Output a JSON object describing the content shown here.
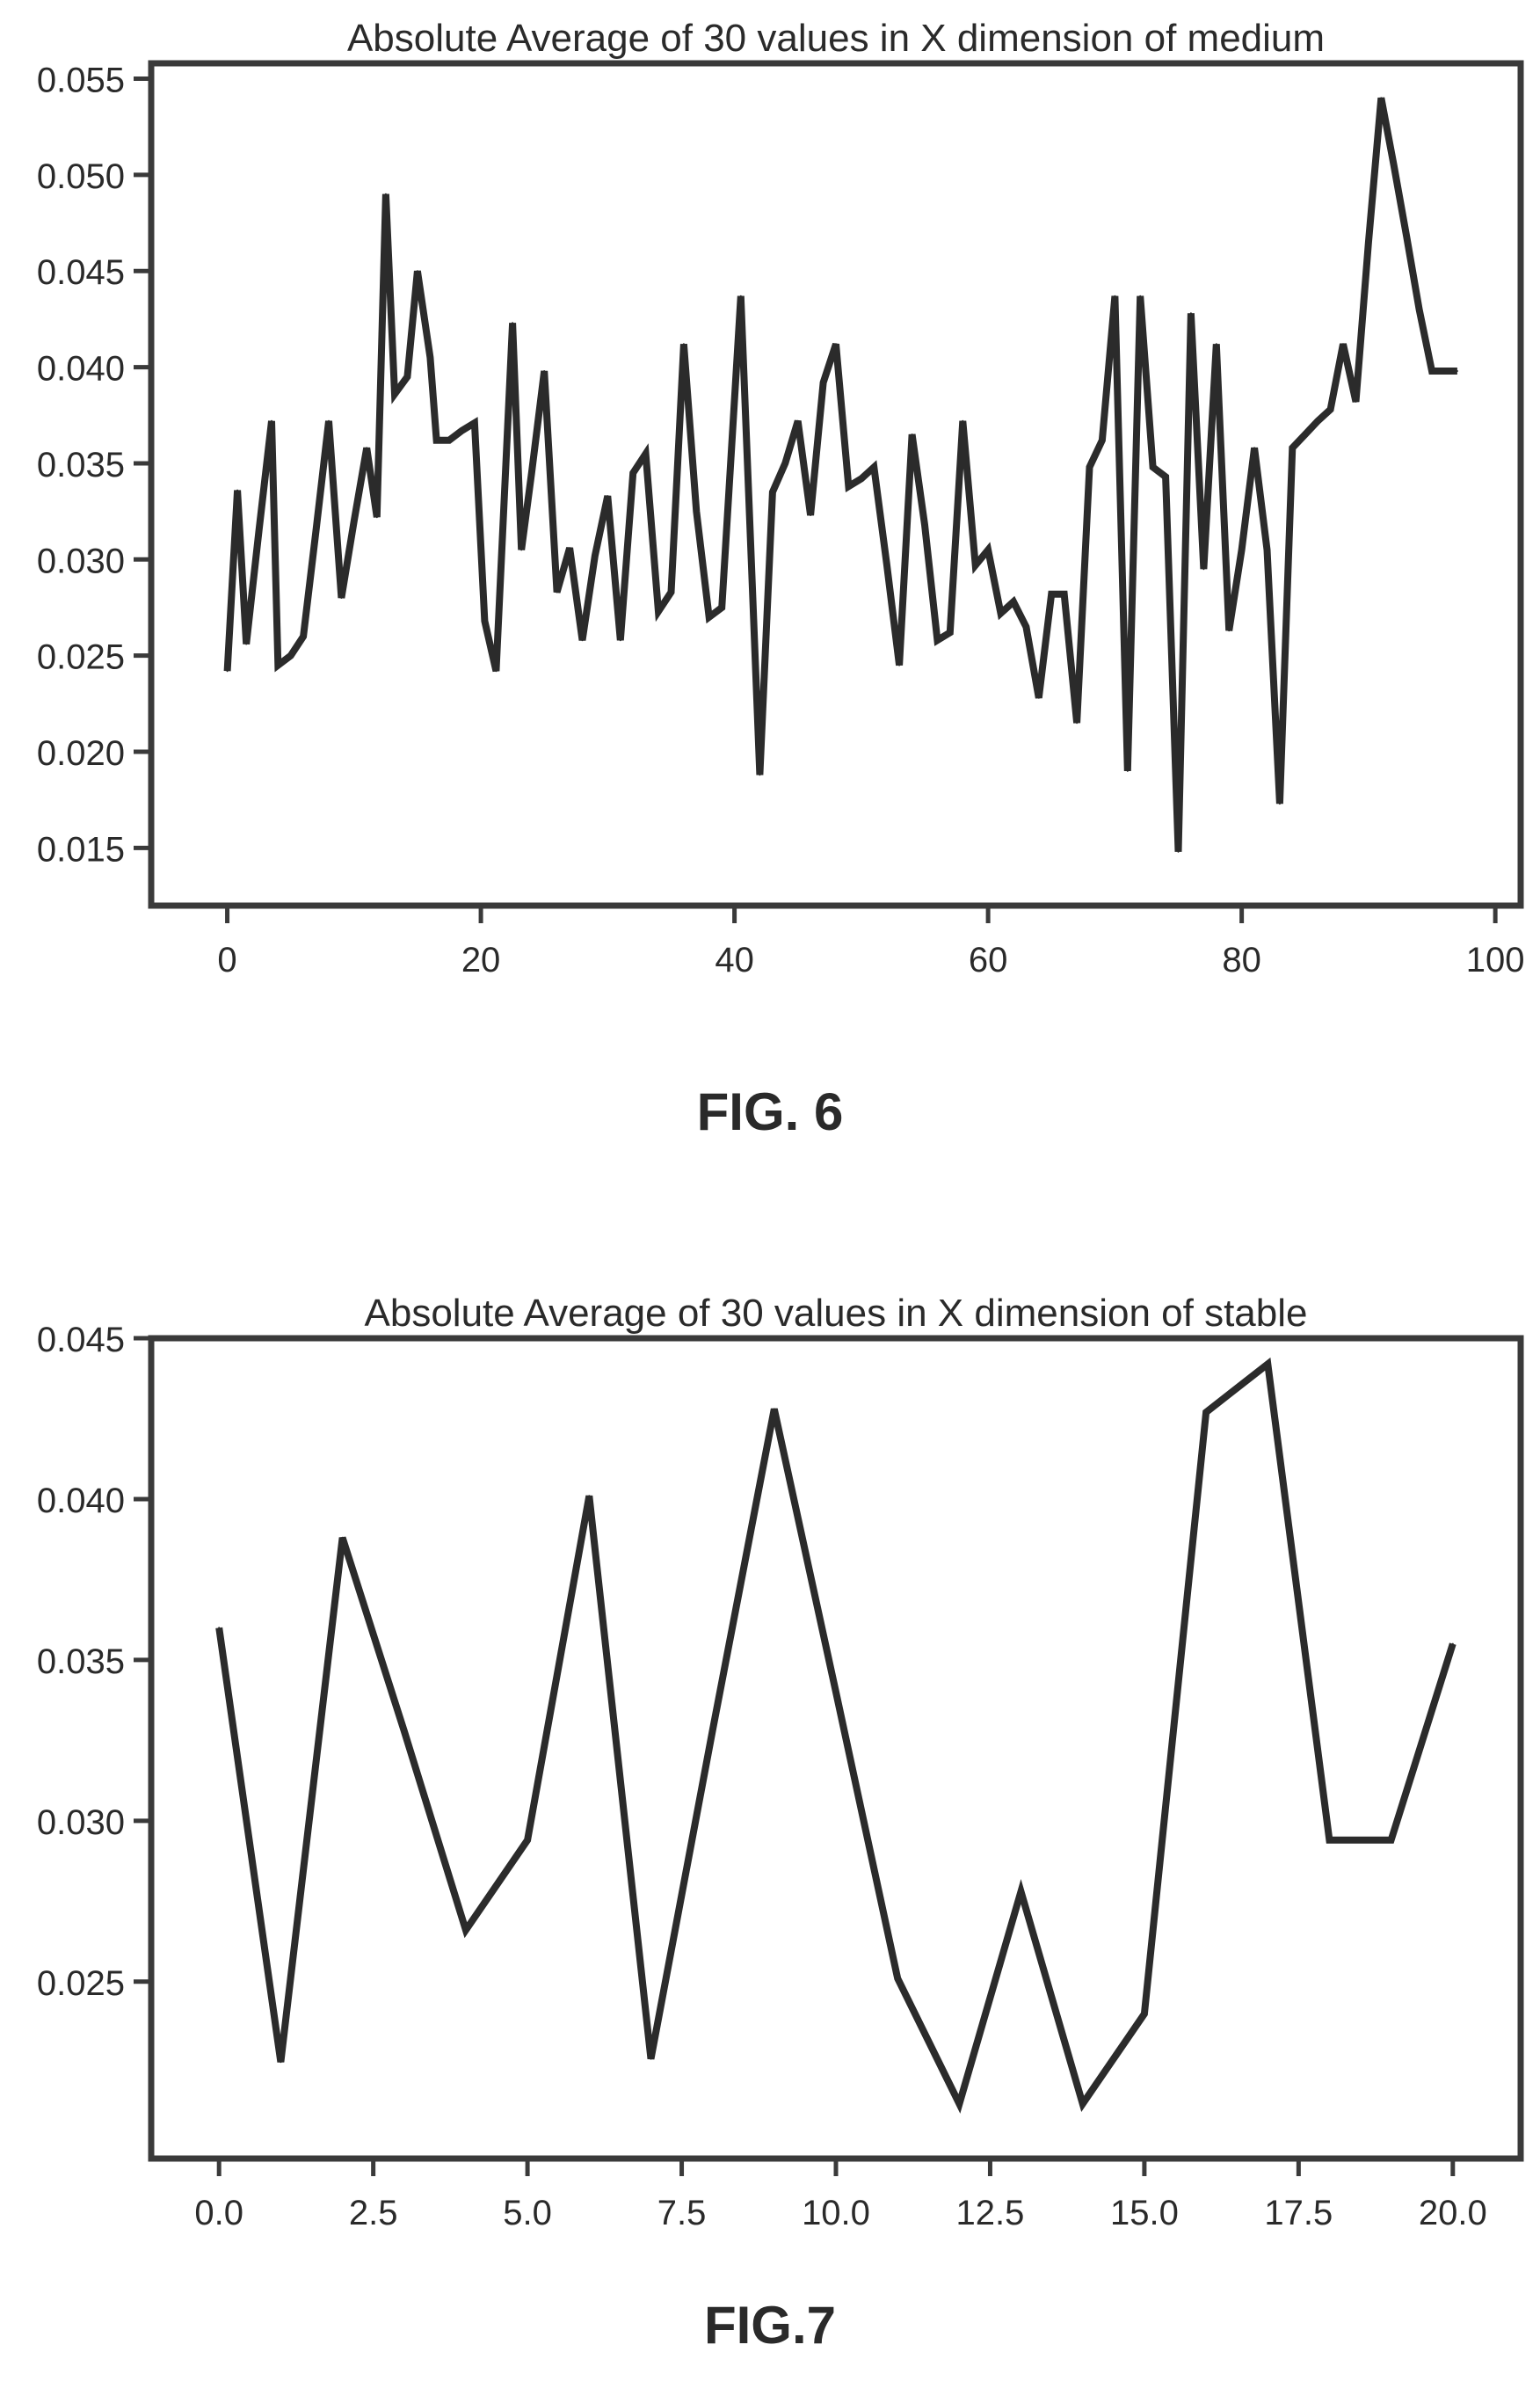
{
  "figures": [
    {
      "caption": "FIG. 6",
      "chart_data": {
        "type": "line",
        "title": "Absolute Average of 30 values in X dimension of medium",
        "xlabel": "",
        "ylabel": "",
        "xlim": [
          -6,
          102
        ],
        "ylim": [
          0.012,
          0.0558
        ],
        "xticks": [
          0,
          20,
          40,
          60,
          80,
          100
        ],
        "xtick_labels": [
          "0",
          "20",
          "40",
          "60",
          "80",
          "100"
        ],
        "yticks": [
          0.015,
          0.02,
          0.025,
          0.03,
          0.035,
          0.04,
          0.045,
          0.05,
          0.055
        ],
        "ytick_labels": [
          "0.015",
          "0.020",
          "0.025",
          "0.030",
          "0.035",
          "0.040",
          "0.045",
          "0.050",
          "0.055"
        ],
        "grid": false,
        "legend": "none",
        "line_color": "#2b2b2b",
        "series": [
          {
            "x": [
              0,
              0.8,
              1.5,
              2.5,
              3.5,
              4,
              5,
              6,
              7,
              8,
              9,
              10,
              11,
              11.8,
              12.5,
              13.2,
              14.2,
              15,
              16,
              16.5,
              17.5,
              18.5,
              19.5,
              20.3,
              21.2,
              22.5,
              23.2,
              24,
              25,
              26,
              27,
              28,
              29,
              30,
              31,
              32,
              33,
              34,
              35,
              36,
              37,
              38,
              39,
              40.5,
              42,
              43,
              44,
              45,
              46,
              47,
              48,
              49,
              50,
              51,
              52,
              53,
              54,
              55,
              56,
              57,
              58,
              59,
              60,
              61,
              62,
              63,
              64,
              65,
              66,
              67,
              68,
              69,
              70,
              71,
              72,
              73,
              74,
              75,
              76,
              77,
              78,
              79,
              80,
              81,
              82,
              83,
              84,
              85,
              86,
              87,
              88,
              89,
              90,
              91,
              92,
              93,
              94,
              95,
              96,
              97
            ],
            "y": [
              0.0242,
              0.0336,
              0.0256,
              0.0315,
              0.0372,
              0.0245,
              0.025,
              0.026,
              0.0315,
              0.0372,
              0.028,
              0.032,
              0.0358,
              0.0322,
              0.049,
              0.0386,
              0.0395,
              0.045,
              0.0405,
              0.0362,
              0.0362,
              0.0367,
              0.0371,
              0.0268,
              0.0242,
              0.0423,
              0.0305,
              0.0345,
              0.0398,
              0.0283,
              0.0306,
              0.0258,
              0.0302,
              0.0333,
              0.0258,
              0.0345,
              0.0355,
              0.0273,
              0.0283,
              0.0412,
              0.0325,
              0.027,
              0.0275,
              0.0437,
              0.0188,
              0.0335,
              0.035,
              0.0372,
              0.0323,
              0.0392,
              0.0412,
              0.0338,
              0.0342,
              0.0348,
              0.0298,
              0.0245,
              0.0365,
              0.0318,
              0.0258,
              0.0262,
              0.0372,
              0.0297,
              0.0305,
              0.0272,
              0.0278,
              0.0265,
              0.0228,
              0.0282,
              0.0282,
              0.0215,
              0.0348,
              0.0362,
              0.0437,
              0.019,
              0.0437,
              0.0348,
              0.0343,
              0.0148,
              0.0428,
              0.0295,
              0.0412,
              0.0263,
              0.0305,
              0.0358,
              0.0305,
              0.0173,
              0.0358,
              0.0365,
              0.0372,
              0.0378,
              0.0412,
              0.0382,
              0.0465,
              0.054,
              0.0505,
              0.0468,
              0.043,
              0.0398,
              0.0398,
              0.0398
            ]
          }
        ]
      }
    },
    {
      "caption": "FIG.7",
      "chart_data": {
        "type": "line",
        "title": "Absolute Average of 30 values in X dimension of stable",
        "xlabel": "",
        "ylabel": "",
        "xlim": [
          -1.1,
          21.1
        ],
        "ylim": [
          0.0195,
          0.045
        ],
        "xticks": [
          0.0,
          2.5,
          5.0,
          7.5,
          10.0,
          12.5,
          15.0,
          17.5,
          20.0
        ],
        "xtick_labels": [
          "0.0",
          "2.5",
          "5.0",
          "7.5",
          "10.0",
          "12.5",
          "15.0",
          "17.5",
          "20.0"
        ],
        "yticks": [
          0.025,
          0.03,
          0.035,
          0.04,
          0.045
        ],
        "ytick_labels": [
          "0.025",
          "0.030",
          "0.035",
          "0.040",
          "0.045"
        ],
        "grid": false,
        "legend": "none",
        "line_color": "#2b2b2b",
        "series": [
          {
            "x": [
              0,
              1,
              2,
              3,
              4,
              5,
              6,
              7,
              8,
              9,
              10,
              11,
              12,
              13,
              14,
              15,
              16,
              17,
              18,
              19,
              20
            ],
            "y": [
              0.036,
              0.0225,
              0.0388,
              0.0328,
              0.0266,
              0.0294,
              0.0401,
              0.0226,
              0.0328,
              0.0428,
              0.034,
              0.0251,
              0.0212,
              0.0278,
              0.0212,
              0.024,
              0.0427,
              0.0442,
              0.0294,
              0.0294,
              0.0355
            ]
          }
        ]
      }
    }
  ]
}
